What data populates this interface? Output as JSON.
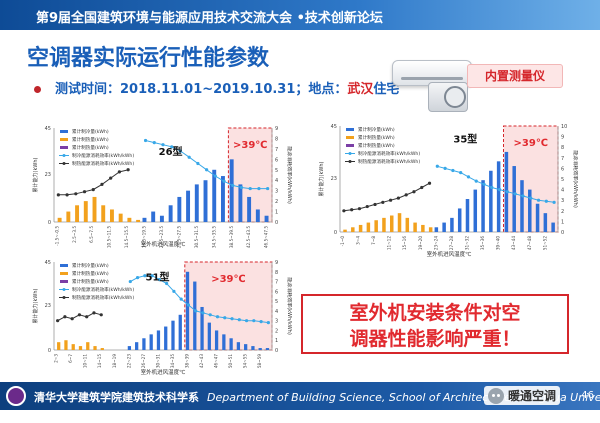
{
  "header": {
    "conference": "第9届全国建筑环境与能源应用技术交流大会 •技术创新论坛"
  },
  "slide": {
    "title": "空调器实际运行性能参数",
    "test_time_label": "测试时间：",
    "test_time_value": "2018.11.01~2019.10.31",
    "location_label": "；地点：",
    "location_city": "武汉",
    "location_suffix": "住宅",
    "badge": "内置测量仪",
    "callout_line1": "室外机安装条件对空",
    "callout_line2": "调器性能影响严重！"
  },
  "footer": {
    "org": "清华大学建筑学院建筑技术科学系",
    "org_en": "Department of Building Science, School of Architecture, Tsinghua University",
    "page": "46",
    "watermark": "暖通空调"
  },
  "colors": {
    "cooling": "#2f6fd6",
    "heating": "#f2a11d",
    "purple": "#7b3fa6",
    "line": "#38a8e8",
    "dark": "#333333",
    "hot_zone": "#d5262b"
  },
  "chart_data": [
    {
      "type": "bar",
      "model_label": "26型",
      "threshold_label": ">39℃",
      "legend": [
        "累计制冷量(kWh)",
        "累计制热量(kWh)",
        "累计制热量(kWh)",
        "制冷能源消耗效率(kWh/kWh)",
        "制热能源消耗效率(kWh/kWh)"
      ],
      "xlabel": "室外机进风温度℃",
      "ylabel_left": "累计能力(kWh)",
      "ylabel_right": "能源消耗效率(kWh/kWh)",
      "ylim_left": [
        0,
        45
      ],
      "ylim_right": [
        0,
        9
      ],
      "categories": [
        "-1.5~-0.5",
        "0.5~1.5",
        "2.5~3.5",
        "4.5~5.5",
        "6.5~7.5",
        "8.5~9.5",
        "10.5~11.5",
        "12.5~13.5",
        "14.5~15.5",
        "16.5~17.5",
        "18.5~19.5",
        "20.5~21.5",
        "22.5~23.5",
        "24.5~25.5",
        "26.5~27.5",
        "28.5~29.5",
        "30.5~31.5",
        "32.5~33.5",
        "34.5~35.5",
        "36.5~37.5",
        "38.5~39.5",
        "40.5~41.5",
        "42.5~43.5",
        "44.5~45.5",
        "46.5~47.5"
      ],
      "hot_from_index": 20,
      "series": [
        {
          "name": "累计制冷量(kWh)",
          "kind": "bar",
          "color": "#2f6fd6",
          "values": [
            0,
            0,
            0,
            0,
            0,
            0,
            0,
            0,
            0,
            0,
            2,
            5,
            3,
            8,
            12,
            15,
            18,
            20,
            25,
            22,
            30,
            18,
            12,
            6,
            3
          ]
        },
        {
          "name": "累计制热量(kWh)",
          "kind": "bar",
          "color": "#f2a11d",
          "values": [
            2,
            5,
            8,
            10,
            12,
            8,
            6,
            4,
            2,
            1,
            0,
            0,
            0,
            0,
            0,
            0,
            0,
            0,
            0,
            0,
            0,
            0,
            0,
            0,
            0
          ]
        },
        {
          "name": "制冷能源消耗效率(kWh/kWh)",
          "kind": "line",
          "color": "#38a8e8",
          "values": [
            null,
            null,
            null,
            null,
            null,
            null,
            null,
            null,
            null,
            null,
            7.8,
            7.6,
            7.4,
            7.2,
            6.8,
            6.2,
            5.6,
            5.0,
            4.4,
            3.9,
            3.5,
            3.3,
            3.2,
            3.2,
            3.2
          ]
        },
        {
          "name": "制热能源消耗效率(kWh/kWh)",
          "kind": "line",
          "color": "#333333",
          "values": [
            2.6,
            2.6,
            2.7,
            2.9,
            3.1,
            3.6,
            4.2,
            4.8,
            5.0,
            null,
            null,
            null,
            null,
            null,
            null,
            null,
            null,
            null,
            null,
            null,
            null,
            null,
            null,
            null,
            null
          ]
        }
      ]
    },
    {
      "type": "bar",
      "model_label": "35型",
      "threshold_label": ">39℃",
      "legend": [
        "累计制冷量(kWh)",
        "累计制热量(kWh)",
        "累计制热量(kWh)",
        "制冷能源消耗效率(kWh/kWh)",
        "制热能源消耗效率(kWh/kWh)"
      ],
      "xlabel": "室外机进风温度℃",
      "ylabel_left": "累计能力(kWh)",
      "ylabel_right": "能源消耗效率(kWh/kWh)",
      "ylim_left": [
        0,
        45
      ],
      "ylim_right": [
        0,
        10
      ],
      "categories": [
        "-1~0",
        "1~2",
        "3~4",
        "5~6",
        "7~8",
        "9~10",
        "11~12",
        "13~14",
        "15~16",
        "17~18",
        "19~20",
        "21~22",
        "23~24",
        "25~26",
        "27~28",
        "29~30",
        "31~32",
        "33~34",
        "35~36",
        "37~38",
        "39~40",
        "41~42",
        "43~44",
        "45~46",
        "47~48",
        "49~50",
        "51~52",
        "53~54"
      ],
      "hot_from_index": 21,
      "series": [
        {
          "name": "累计制冷量(kWh)",
          "kind": "bar",
          "color": "#2f6fd6",
          "values": [
            0,
            0,
            0,
            0,
            0,
            0,
            0,
            0,
            0,
            0,
            0,
            0,
            2,
            4,
            6,
            10,
            14,
            18,
            22,
            26,
            30,
            34,
            28,
            22,
            18,
            12,
            8,
            4
          ]
        },
        {
          "name": "累计制热量(kWh)",
          "kind": "bar",
          "color": "#f2a11d",
          "values": [
            1,
            2,
            3,
            4,
            5,
            6,
            7,
            8,
            6,
            4,
            3,
            2,
            0,
            0,
            0,
            0,
            0,
            0,
            0,
            0,
            0,
            0,
            0,
            0,
            0,
            0,
            0,
            0
          ]
        },
        {
          "name": "制冷能源消耗效率(kWh/kWh)",
          "kind": "line",
          "color": "#38a8e8",
          "values": [
            null,
            null,
            null,
            null,
            null,
            null,
            null,
            null,
            null,
            null,
            null,
            null,
            6.2,
            6.0,
            5.8,
            5.6,
            5.2,
            4.8,
            4.5,
            4.2,
            4.0,
            3.8,
            3.6,
            3.4,
            3.2,
            3.0,
            2.9,
            2.8
          ]
        },
        {
          "name": "制热能源消耗效率(kWh/kWh)",
          "kind": "line",
          "color": "#333333",
          "values": [
            2.0,
            2.1,
            2.2,
            2.4,
            2.6,
            2.8,
            3.0,
            3.2,
            3.5,
            3.8,
            4.2,
            4.6,
            null,
            null,
            null,
            null,
            null,
            null,
            null,
            null,
            null,
            null,
            null,
            null,
            null,
            null,
            null,
            null
          ]
        }
      ]
    },
    {
      "type": "bar",
      "model_label": "51型",
      "threshold_label": ">39℃",
      "legend": [
        "累计制冷量(kWh)",
        "累计制热量(kWh)",
        "累计制热量(kWh)",
        "制冷能源消耗效率(kWh/kWh)",
        "制热能源消耗效率(kWh/kWh)"
      ],
      "xlabel": "室外机进风温度℃",
      "ylabel_left": "累计能力(kWh)",
      "ylabel_right": "能源消耗效率(kWh/kWh)",
      "ylim_left": [
        0,
        45
      ],
      "ylim_right": [
        0,
        9
      ],
      "categories": [
        "2~3",
        "4~5",
        "6~7",
        "8~9",
        "10~11",
        "12~13",
        "14~15",
        "16~17",
        "18~19",
        "20~21",
        "22~23",
        "24~25",
        "26~27",
        "28~29",
        "30~31",
        "32~33",
        "34~35",
        "36~37",
        "38~39",
        "40~41",
        "42~43",
        "44~45",
        "46~47",
        "48~49",
        "50~51",
        "52~53",
        "54~55",
        "56~57",
        "58~59",
        "60~61"
      ],
      "hot_from_index": 18,
      "series": [
        {
          "name": "累计制冷量(kWh)",
          "kind": "bar",
          "color": "#2f6fd6",
          "values": [
            0,
            0,
            0,
            0,
            0,
            0,
            0,
            0,
            0,
            0,
            2,
            4,
            6,
            8,
            10,
            12,
            15,
            18,
            40,
            35,
            22,
            14,
            10,
            8,
            6,
            4,
            3,
            2,
            1,
            1
          ]
        },
        {
          "name": "累计制热量(kWh)",
          "kind": "bar",
          "color": "#f2a11d",
          "values": [
            4,
            5,
            3,
            2,
            4,
            2,
            1,
            0,
            0,
            0,
            0,
            0,
            0,
            0,
            0,
            0,
            0,
            0,
            0,
            0,
            0,
            0,
            0,
            0,
            0,
            0,
            0,
            0,
            0,
            0
          ]
        },
        {
          "name": "制冷能源消耗效率(kWh/kWh)",
          "kind": "line",
          "color": "#38a8e8",
          "values": [
            null,
            null,
            null,
            null,
            null,
            null,
            null,
            null,
            null,
            null,
            7.0,
            7.4,
            7.6,
            7.6,
            7.2,
            6.8,
            6.0,
            5.2,
            4.6,
            4.0,
            3.8,
            3.6,
            3.4,
            3.3,
            3.2,
            3.1,
            3.0,
            3.0,
            2.9,
            2.8
          ]
        },
        {
          "name": "制热能源消耗效率(kWh/kWh)",
          "kind": "line",
          "color": "#333333",
          "values": [
            3.0,
            3.4,
            3.2,
            3.6,
            3.4,
            3.8,
            3.6,
            null,
            null,
            null,
            null,
            null,
            null,
            null,
            null,
            null,
            null,
            null,
            null,
            null,
            null,
            null,
            null,
            null,
            null,
            null,
            null,
            null,
            null,
            null
          ]
        }
      ]
    }
  ]
}
